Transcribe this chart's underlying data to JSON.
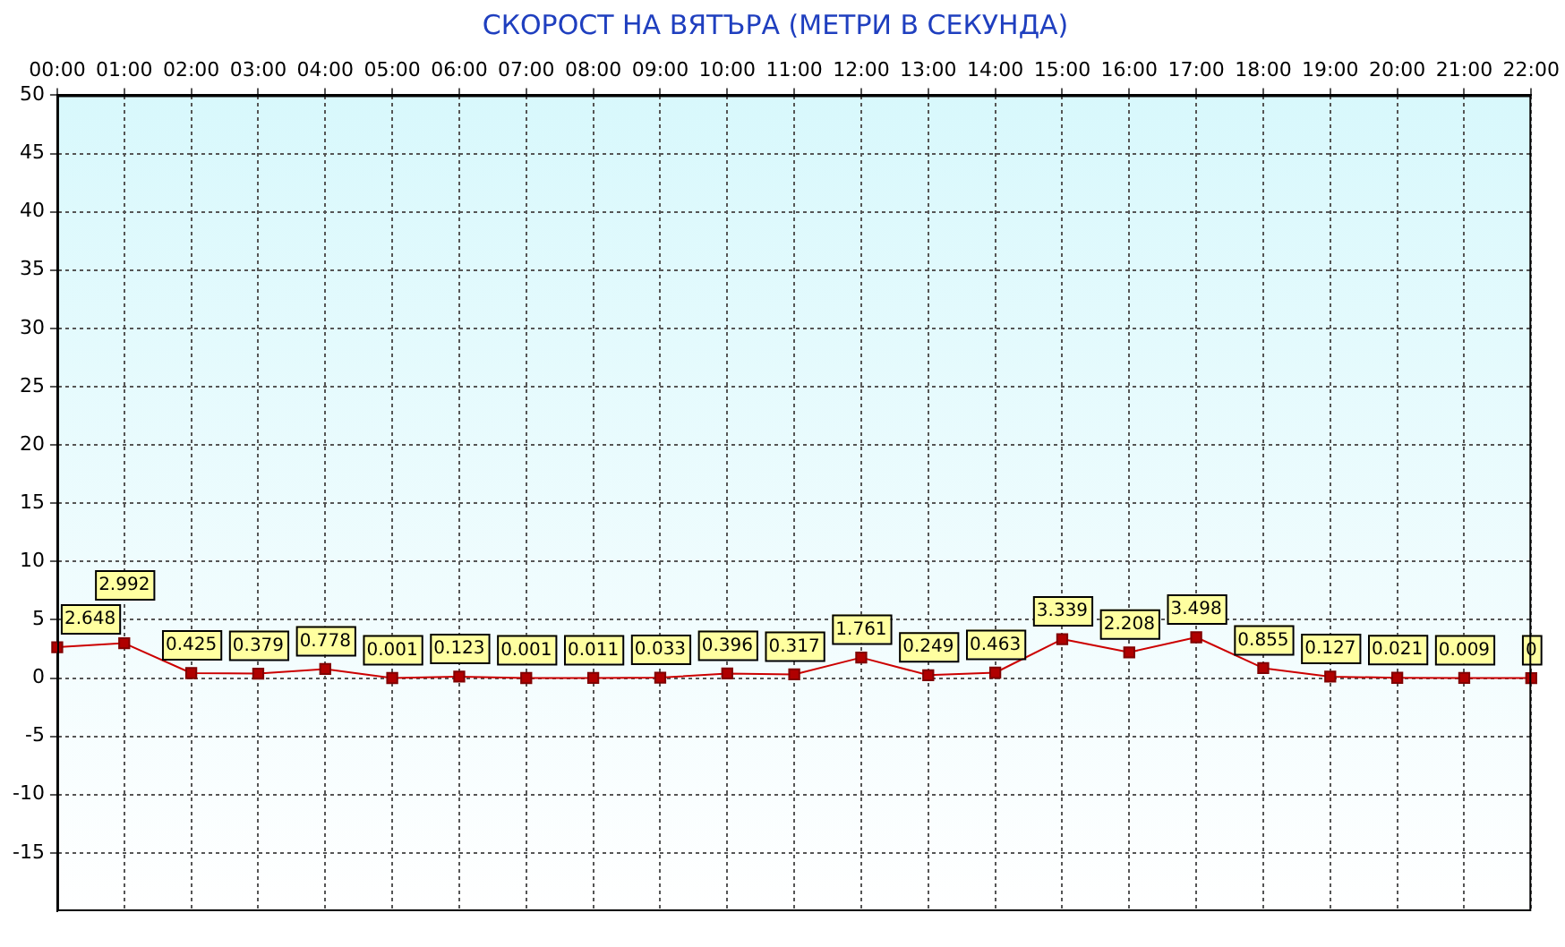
{
  "chart_data": {
    "type": "line",
    "title": "СКОРОСТ НА ВЯТЪРА (МЕТРИ В СЕКУНДА)",
    "categories": [
      "00:00",
      "01:00",
      "02:00",
      "03:00",
      "04:00",
      "05:00",
      "06:00",
      "07:00",
      "08:00",
      "09:00",
      "10:00",
      "11:00",
      "12:00",
      "13:00",
      "14:00",
      "15:00",
      "16:00",
      "17:00",
      "18:00",
      "19:00",
      "20:00",
      "21:00",
      "22:00"
    ],
    "series": [
      {
        "color": "#cc0000",
        "values": [
          2.648,
          2.992,
          0.425,
          0.379,
          0.778,
          0.001,
          0.123,
          0.001,
          0.011,
          0.033,
          0.396,
          0.317,
          1.761,
          0.249,
          0.463,
          3.339,
          2.208,
          3.498,
          0.855,
          0.127,
          0.021,
          0.009,
          0
        ]
      }
    ],
    "ylim": [
      -20,
      50
    ],
    "yticks": [
      -15,
      -10,
      -5,
      0,
      5,
      10,
      15,
      20,
      25,
      30,
      35,
      40,
      45,
      50
    ],
    "grid": true,
    "legend": false,
    "marker": "square",
    "line_style": "solid",
    "data_labels": true
  }
}
